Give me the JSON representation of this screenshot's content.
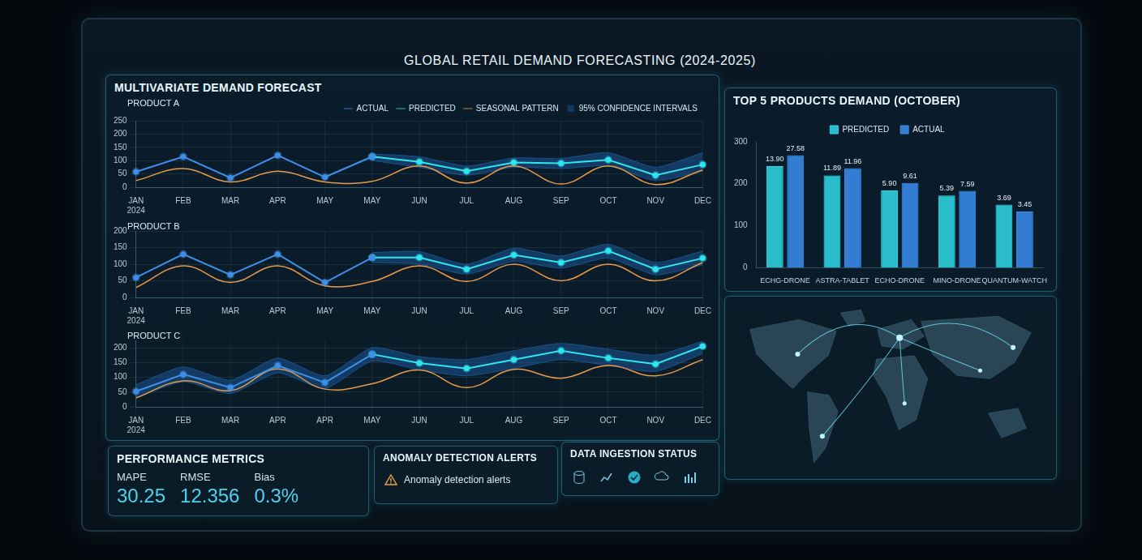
{
  "title": "GLOBAL RETAIL DEMAND FORECASTING (2024-2025)",
  "forecast_panel_title": "MULTIVARIATE DEMAND FORECAST",
  "top_products_panel_title": "TOP 5 PRODUCTS DEMAND (OCTOBER)",
  "chart_data": [
    {
      "type": "line",
      "title": "PRODUCT A",
      "categories": [
        "JAN 2024",
        "FEB",
        "MAR",
        "APR",
        "MAY",
        "MAY",
        "JUN",
        "JUL",
        "AUG",
        "SEP",
        "OCT",
        "NOV",
        "DEC"
      ],
      "series": [
        {
          "name": "ACTUAL",
          "color": "#3f8fe8",
          "marker": "circle",
          "values": [
            58,
            115,
            35,
            120,
            38,
            115,
            null,
            null,
            null,
            null,
            null,
            null,
            null
          ]
        },
        {
          "name": "PREDICTED",
          "color": "#2ee6f0",
          "marker": "circle",
          "values": [
            null,
            null,
            null,
            null,
            null,
            115,
            95,
            60,
            93,
            90,
            103,
            45,
            85
          ]
        },
        {
          "name": "95% CONFIDENCE INTERVALS",
          "type": "band",
          "color": "#1f5fa8",
          "lower": [
            null,
            null,
            null,
            null,
            null,
            100,
            75,
            45,
            75,
            70,
            80,
            25,
            60
          ],
          "upper": [
            null,
            null,
            null,
            null,
            null,
            125,
            115,
            80,
            110,
            108,
            130,
            75,
            130
          ]
        },
        {
          "name": "SEASONAL PATTERN",
          "color": "#e89a4a",
          "marker": "none",
          "values": [
            25,
            70,
            20,
            60,
            20,
            22,
            80,
            15,
            80,
            12,
            80,
            10,
            65
          ]
        }
      ],
      "ylim": [
        0,
        250
      ],
      "yticks": [
        0,
        50,
        100,
        150,
        200,
        250
      ],
      "grid": true,
      "legend": "top-right"
    },
    {
      "type": "line",
      "title": "PRODUCT B",
      "categories": [
        "JAN 2024",
        "FEB",
        "MAR",
        "APR",
        "MAY",
        "MAY",
        "JUN",
        "JUL",
        "AUG",
        "SEP",
        "OCT",
        "NOV",
        "DEC"
      ],
      "series": [
        {
          "name": "ACTUAL",
          "color": "#3f8fe8",
          "marker": "circle",
          "values": [
            60,
            130,
            68,
            130,
            45,
            120,
            null,
            null,
            null,
            null,
            null,
            null,
            null
          ]
        },
        {
          "name": "PREDICTED",
          "color": "#2ee6f0",
          "marker": "circle",
          "values": [
            null,
            null,
            null,
            null,
            null,
            120,
            120,
            85,
            128,
            105,
            140,
            85,
            118
          ]
        },
        {
          "name": "95% CONFIDENCE INTERVALS",
          "type": "band",
          "color": "#1f5fa8",
          "lower": [
            null,
            null,
            null,
            null,
            null,
            105,
            100,
            70,
            108,
            88,
            118,
            68,
            98
          ],
          "upper": [
            null,
            null,
            null,
            null,
            null,
            135,
            138,
            100,
            148,
            125,
            160,
            105,
            140
          ]
        },
        {
          "name": "SEASONAL PATTERN",
          "color": "#e89a4a",
          "marker": "none",
          "values": [
            30,
            95,
            45,
            95,
            35,
            48,
            95,
            48,
            100,
            50,
            100,
            50,
            105
          ]
        }
      ],
      "ylim": [
        0,
        200
      ],
      "yticks": [
        0,
        50,
        100,
        150,
        200
      ],
      "grid": true
    },
    {
      "type": "line",
      "title": "PRODUCT C",
      "categories": [
        "JAN 2024",
        "FEB",
        "MAR",
        "APR",
        "APR",
        "MAY",
        "JUN",
        "JUL",
        "AUG",
        "SEP",
        "OCT",
        "NOV",
        "DEC"
      ],
      "series": [
        {
          "name": "ACTUAL",
          "color": "#3f8fe8",
          "marker": "circle",
          "values": [
            52,
            110,
            65,
            140,
            82,
            178,
            null,
            null,
            null,
            null,
            null,
            null,
            null
          ]
        },
        {
          "name": "PREDICTED",
          "color": "#2ee6f0",
          "marker": "circle",
          "values": [
            null,
            null,
            null,
            null,
            null,
            178,
            148,
            130,
            160,
            190,
            165,
            145,
            205
          ]
        },
        {
          "name": "95% CONFIDENCE INTERVALS",
          "type": "band",
          "color": "#1f5fa8",
          "lower": [
            30,
            85,
            45,
            115,
            62,
            155,
            125,
            105,
            130,
            160,
            140,
            120,
            180
          ],
          "upper": [
            75,
            135,
            90,
            165,
            105,
            200,
            170,
            160,
            190,
            215,
            195,
            175,
            222
          ]
        },
        {
          "name": "SEASONAL PATTERN",
          "color": "#e89a4a",
          "marker": "none",
          "values": [
            30,
            88,
            55,
            128,
            60,
            78,
            125,
            65,
            127,
            97,
            140,
            105,
            160
          ]
        }
      ],
      "ylim": [
        0,
        225
      ],
      "yticks": [
        0,
        50,
        100,
        150,
        200
      ],
      "grid": true
    },
    {
      "type": "bar",
      "categories": [
        "ECHG-DRONE",
        "ASTRA-TABLET",
        "ECHO-DRONE",
        "MINO-DRONE",
        "QUANTUM-WATCH"
      ],
      "series": [
        {
          "name": "PREDICTED",
          "color": "#2fd8e8",
          "values": [
            242,
            220,
            184,
            172,
            150
          ],
          "annotations": [
            "13.90",
            "11.89",
            "5.90",
            "5.39",
            "3.69"
          ]
        },
        {
          "name": "ACTUAL",
          "color": "#3a8ef0",
          "values": [
            268,
            237,
            202,
            183,
            134
          ],
          "annotations": [
            "27.58",
            "11.96",
            "9.61",
            "7.59",
            "3.45"
          ]
        }
      ],
      "ylim": [
        0,
        300
      ],
      "yticks": [
        0,
        100,
        200,
        300
      ],
      "grid": false,
      "legend": "top"
    }
  ],
  "performance_metrics": {
    "title": "PERFORMANCE METRICS",
    "items": [
      {
        "label": "MAPE",
        "value": "30.25"
      },
      {
        "label": "RMSE",
        "value": "12.356"
      },
      {
        "label": "Bias",
        "value": "0.3%"
      }
    ]
  },
  "anomaly_alerts": {
    "title": "ANOMALY DETECTION ALERTS",
    "items": [
      "Anomaly detection alerts"
    ]
  },
  "data_ingestion": {
    "title": "DATA INGESTION STATUS"
  }
}
